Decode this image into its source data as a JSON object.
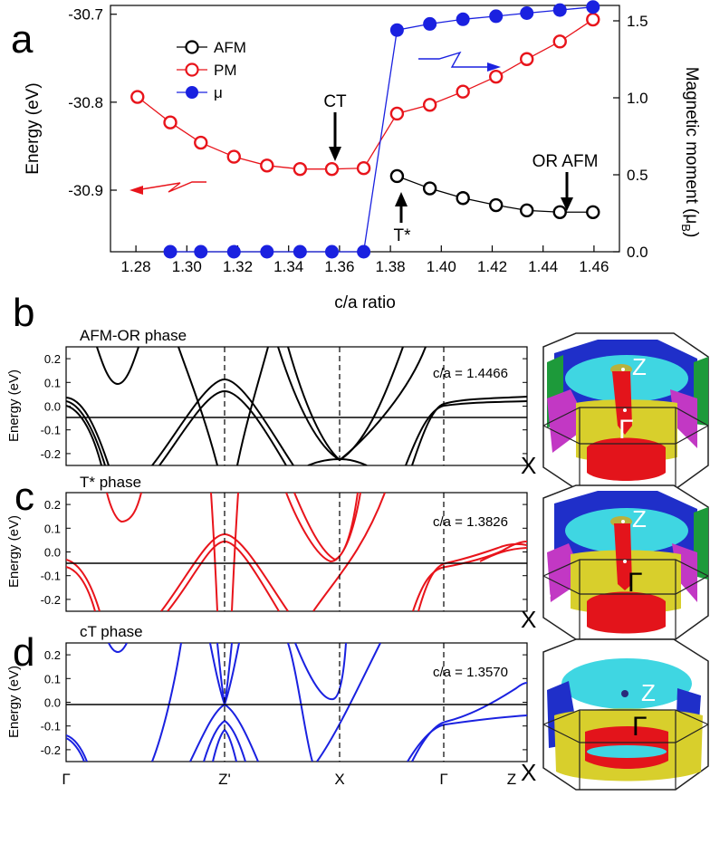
{
  "panel_labels": [
    "a",
    "b",
    "c",
    "d"
  ],
  "colors": {
    "afm": "#000000",
    "pm": "#e8141b",
    "mu": "#1a21e0",
    "black": "#000000",
    "fs_cyan": "#3fd6e2",
    "fs_red": "#e3141b",
    "fs_yellow": "#d8cf2c",
    "fs_blue": "#1f2fc9",
    "fs_magenta": "#c238c4",
    "fs_green": "#1d9a3a"
  },
  "chart_data": [
    {
      "type": "line",
      "panel": "a",
      "xlabel": "c/a ratio",
      "ylabel": "Energy (eV)",
      "ylabel_right_main": "Magnetic moment (μ",
      "ylabel_right_sub": "B",
      "ylabel_right_end": ")",
      "xlim": [
        1.27,
        1.47
      ],
      "ylim": [
        -30.97,
        -30.69
      ],
      "y2lim": [
        0.0,
        1.6
      ],
      "xticks": [
        "1.28",
        "1.30",
        "1.32",
        "1.34",
        "1.36",
        "1.38",
        "1.40",
        "1.42",
        "1.44",
        "1.46"
      ],
      "yticks": [
        "-30.7",
        "-30.8",
        "-30.9"
      ],
      "y2ticks": [
        "0.0",
        "0.5",
        "1.0",
        "1.5"
      ],
      "legend": [
        {
          "name": "AFM",
          "marker": "open-circle",
          "color": "#000000"
        },
        {
          "name": "PM",
          "marker": "open-circle",
          "color": "#e8141b"
        },
        {
          "name": "μ",
          "marker": "filled-circle",
          "color": "#1a21e0"
        }
      ],
      "legend_position": "top-left",
      "series": [
        {
          "name": "AFM",
          "axis": "left",
          "x": [
            1.3826,
            1.3955,
            1.4085,
            1.4215,
            1.4336,
            1.4466,
            1.4596
          ],
          "values": [
            -30.884,
            -30.898,
            -30.909,
            -30.917,
            -30.923,
            -30.925,
            -30.925
          ]
        },
        {
          "name": "PM",
          "axis": "left",
          "x": [
            1.2806,
            1.2935,
            1.3055,
            1.3185,
            1.3315,
            1.3445,
            1.357,
            1.3695,
            1.3826,
            1.3955,
            1.4085,
            1.4215,
            1.4336,
            1.4466,
            1.4596
          ],
          "values": [
            -30.794,
            -30.823,
            -30.846,
            -30.862,
            -30.872,
            -30.876,
            -30.876,
            -30.875,
            -30.813,
            -30.803,
            -30.788,
            -30.771,
            -30.751,
            -30.731,
            -30.706
          ]
        },
        {
          "name": "μ",
          "axis": "right",
          "x": [
            1.2935,
            1.3055,
            1.3185,
            1.3315,
            1.3445,
            1.357,
            1.3695,
            1.3826,
            1.3955,
            1.4085,
            1.4215,
            1.4336,
            1.4466,
            1.4596
          ],
          "values": [
            0.0,
            0.0,
            0.0,
            0.0,
            0.0,
            0.0,
            0.0,
            1.44,
            1.48,
            1.51,
            1.53,
            1.55,
            1.57,
            1.59
          ]
        }
      ],
      "annotations": [
        {
          "text": "CT",
          "x": 1.357,
          "y": -30.835,
          "arrow": "down"
        },
        {
          "text": "OR AFM",
          "x": 1.4466,
          "y": -30.89,
          "arrow": "down"
        },
        {
          "text": "T*",
          "x": 1.3826,
          "y": -30.95,
          "arrow": "up"
        }
      ]
    },
    {
      "type": "line",
      "panel": "b",
      "title": "AFM-OR phase",
      "ca_label": "c/a = 1.4466",
      "ylabel": "Energy (eV)",
      "ylim": [
        -0.25,
        0.25
      ],
      "yticks": [
        "0.2",
        "0.1",
        "0.0",
        "-0.1",
        "-0.2"
      ],
      "xticks": [],
      "color": "#000000"
    },
    {
      "type": "line",
      "panel": "c",
      "title": "T* phase",
      "ca_label": "c/a = 1.3826",
      "ylabel": "Energy (eV)",
      "ylim": [
        -0.25,
        0.25
      ],
      "yticks": [
        "0.2",
        "0.1",
        "0.0",
        "-0.1",
        "-0.2"
      ],
      "xticks": [],
      "color": "#e8141b"
    },
    {
      "type": "line",
      "panel": "d",
      "title": "cT phase",
      "ca_label": "c/a = 1.3570",
      "ylabel": "Energy (eV)",
      "ylim": [
        -0.25,
        0.25
      ],
      "yticks": [
        "0.2",
        "0.1",
        "0.0",
        "-0.1",
        "-0.2"
      ],
      "xticks": [
        "Γ",
        "Z'",
        "X",
        "Γ",
        "Z"
      ],
      "color": "#1a21e0"
    }
  ],
  "fermi_surface_labels": {
    "z": "Z",
    "gamma": "Γ",
    "x": "X"
  }
}
